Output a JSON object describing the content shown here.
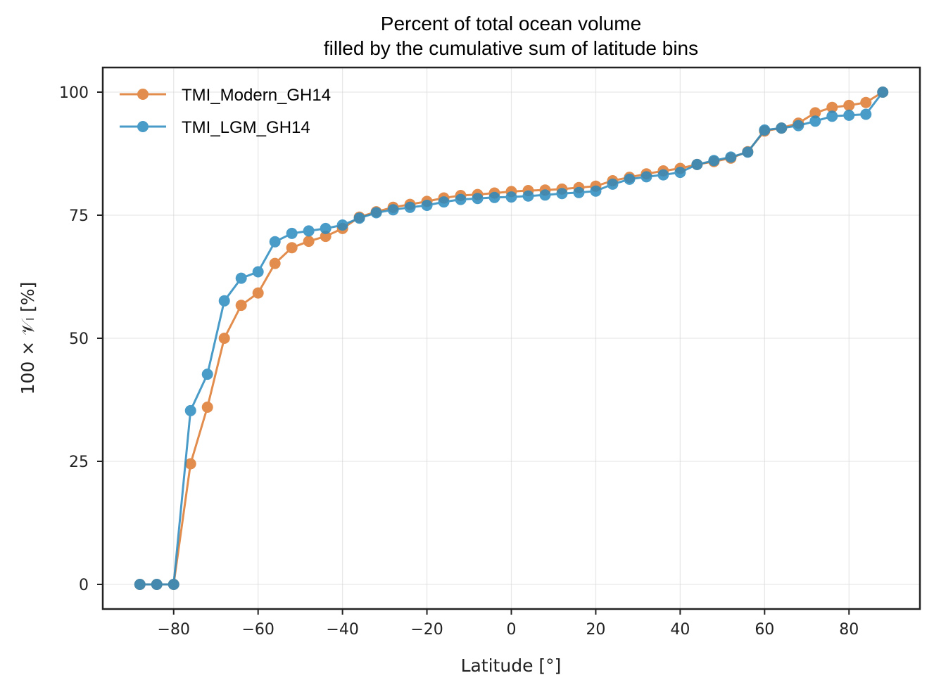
{
  "chart_data": {
    "type": "line",
    "title_line1": "Percent of total ocean volume",
    "title_line2": "filled by the cumulative sum of latitude bins",
    "xlabel": "Latitude [°]",
    "ylabel": "100 × 𝒱ₗ [%]",
    "xlim": [
      -96.8,
      96.8
    ],
    "ylim": [
      -5,
      105
    ],
    "xticks": [
      -80,
      -60,
      -40,
      -20,
      0,
      20,
      40,
      60,
      80
    ],
    "yticks": [
      0,
      25,
      50,
      75,
      100
    ],
    "xtick_labels": [
      "−80",
      "−60",
      "−40",
      "−20",
      "0",
      "20",
      "40",
      "60",
      "80"
    ],
    "ytick_labels": [
      "0",
      "25",
      "50",
      "75",
      "100"
    ],
    "grid": true,
    "legend_position": "top-left",
    "x": [
      -88,
      -84,
      -80,
      -76,
      -72,
      -68,
      -64,
      -60,
      -56,
      -52,
      -48,
      -44,
      -40,
      -36,
      -32,
      -28,
      -24,
      -20,
      -16,
      -12,
      -8,
      -4,
      0,
      4,
      8,
      12,
      16,
      20,
      24,
      28,
      32,
      36,
      40,
      44,
      48,
      52,
      56,
      60,
      64,
      68,
      72,
      76,
      80,
      84,
      88
    ],
    "series": [
      {
        "name": "TMI_Modern_GH14",
        "color": "#dd7a2f",
        "values": [
          0,
          0,
          0,
          24.5,
          36,
          50,
          56.7,
          59.2,
          65.2,
          68.4,
          69.7,
          70.7,
          72.3,
          74.6,
          75.7,
          76.6,
          77.2,
          77.8,
          78.5,
          79.0,
          79.2,
          79.5,
          79.8,
          80.0,
          80.1,
          80.3,
          80.6,
          80.9,
          82.0,
          82.7,
          83.4,
          84.0,
          84.5,
          85.3,
          85.9,
          86.6,
          87.9,
          92.1,
          92.7,
          93.7,
          95.8,
          96.9,
          97.3,
          97.9,
          100
        ]
      },
      {
        "name": "TMI_LGM_GH14",
        "color": "#2a8abf",
        "values": [
          0,
          0,
          0,
          35.3,
          42.7,
          57.6,
          62.2,
          63.5,
          69.6,
          71.3,
          71.8,
          72.3,
          73.0,
          74.4,
          75.5,
          76.1,
          76.6,
          77.0,
          77.7,
          78.2,
          78.4,
          78.6,
          78.7,
          78.9,
          79.1,
          79.4,
          79.6,
          79.9,
          81.3,
          82.3,
          82.8,
          83.2,
          83.7,
          85.3,
          86.1,
          86.8,
          87.8,
          92.3,
          92.7,
          93.2,
          94.1,
          95.1,
          95.3,
          95.5,
          100
        ]
      }
    ]
  }
}
